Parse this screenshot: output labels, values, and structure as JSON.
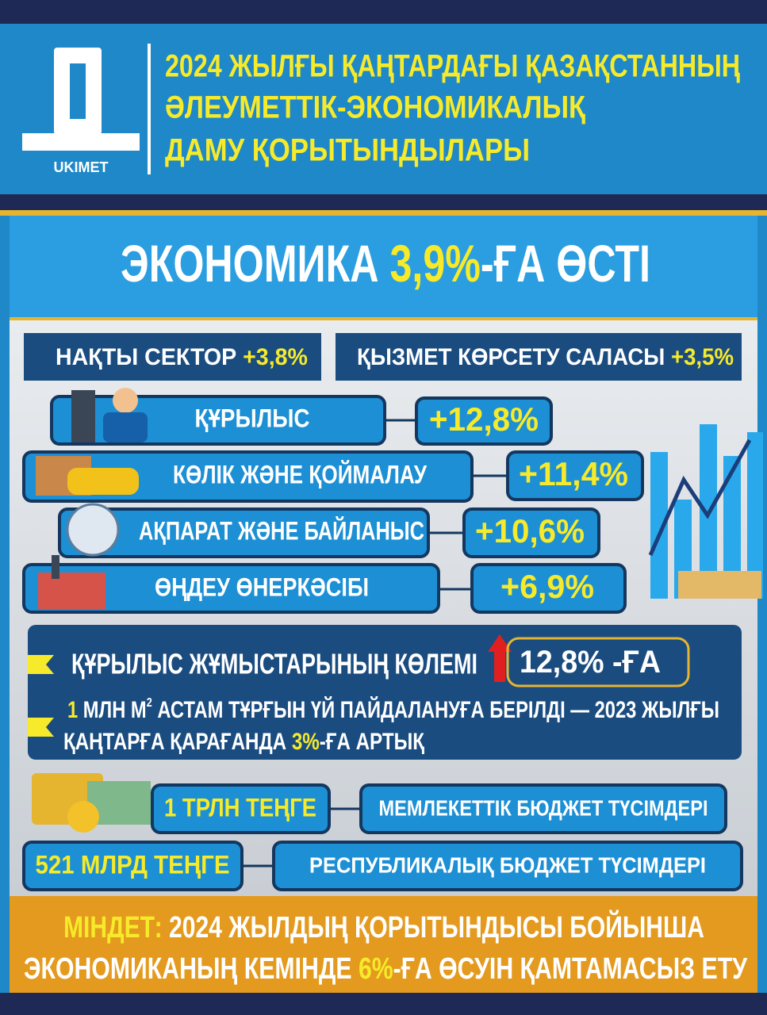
{
  "header": {
    "logo_label": "UKIMET",
    "title_lines": [
      "2024 ЖЫЛҒЫ ҚАҢТАРДАҒЫ ҚАЗАҚСТАННЫҢ",
      "ӘЛЕУМЕТТІК-ЭКОНОМИКАЛЫҚ",
      "ДАМУ ҚОРЫТЫНДЫЛАРЫ"
    ]
  },
  "headline": {
    "prefix": "ЭКОНОМИКА ",
    "value": "3,9%",
    "suffix": "-ҒА ӨСТІ"
  },
  "sectors": [
    {
      "label": "НАҚТЫ СЕКТОР ",
      "value": "+3,8%"
    },
    {
      "label": "ҚЫЗМЕТ КӨРСЕТУ САЛАСЫ ",
      "value": "+3,5%"
    }
  ],
  "industries": [
    {
      "label": "ҚҰРЫЛЫС",
      "value": "+12,8%"
    },
    {
      "label": "КӨЛІК ЖӘНЕ ҚОЙМАЛАУ",
      "value": "+11,4%"
    },
    {
      "label": "АҚПАРАТ ЖӘНЕ БАЙЛАНЫС",
      "value": "+10,6%"
    },
    {
      "label": "ӨҢДЕУ ӨНЕРКӘСІБІ",
      "value": "+6,9%"
    }
  ],
  "construction": {
    "volume_label": "ҚҰРЫЛЫС ЖҰМЫСТАРЫНЫҢ КӨЛЕМІ",
    "volume_value": "12,8%",
    "volume_suffix": " -ҒА",
    "housing_line1": [
      "1",
      " МЛН М",
      "2",
      " АСТАМ ТҰРҒЫН ҮЙ ПАЙДАЛАНУҒА БЕРІЛДІ — 2023 ЖЫЛҒЫ"
    ],
    "housing_line2": [
      "ҚАҢТАРҒА ҚАРАҒАНДА ",
      "3%",
      "-ҒА АРТЫҚ"
    ]
  },
  "budget": [
    {
      "amount": "1 ТРЛН ТЕҢГЕ",
      "label": "МЕМЛЕКЕТТІК БЮДЖЕТ ТҮСІМДЕРІ"
    },
    {
      "amount": "521 МЛРД ТЕҢГЕ",
      "label": "РЕСПУБЛИКАЛЫҚ БЮДЖЕТ ТҮСІМДЕРІ"
    }
  ],
  "goal": {
    "line1": [
      "МІНДЕТ:",
      " 2024 ЖЫЛДЫҢ ҚОРЫТЫНДЫСЫ БОЙЫНША"
    ],
    "line2": [
      "ЭКОНОМИКАНЫҢ КЕМІНДЕ ",
      "6%",
      "-ҒА ӨСУІН ҚАМТАМАСЫЗ ЕТУ"
    ]
  }
}
